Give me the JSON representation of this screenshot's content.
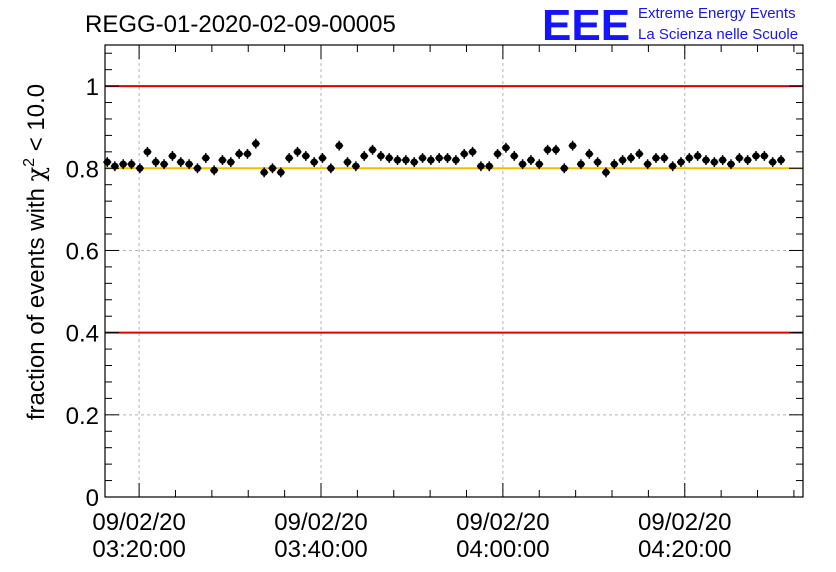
{
  "chart_data": {
    "type": "scatter",
    "title": "REGG-01-2020-02-09-00005",
    "ylabel": "fraction of events with χ² < 10.0",
    "ylabel_parts": {
      "prefix": "fraction of events with ",
      "chi": "χ",
      "sup": "2",
      "suffix": " < 10.0"
    },
    "xlabel": "",
    "x_axis": {
      "type": "time",
      "start": "09/02/20 03:16:15",
      "end": "09/02/20 04:33:00",
      "ticks": [
        {
          "value": "09/02/20 03:20:00",
          "date": "09/02/20",
          "time": "03:20:00"
        },
        {
          "value": "09/02/20 03:40:00",
          "date": "09/02/20",
          "time": "03:40:00"
        },
        {
          "value": "09/02/20 04:00:00",
          "date": "09/02/20",
          "time": "04:00:00"
        },
        {
          "value": "09/02/20 04:20:00",
          "date": "09/02/20",
          "time": "04:20:00"
        }
      ]
    },
    "ylim": [
      0,
      1.1
    ],
    "yticks": [
      {
        "value": 0,
        "label": "0"
      },
      {
        "value": 0.2,
        "label": "0.2"
      },
      {
        "value": 0.4,
        "label": "0.4"
      },
      {
        "value": 0.6,
        "label": "0.6"
      },
      {
        "value": 0.8,
        "label": "0.8"
      },
      {
        "value": 1,
        "label": "1"
      }
    ],
    "grid": true,
    "hlines": [
      {
        "y": 1.0,
        "color": "#e00000"
      },
      {
        "y": 0.4,
        "color": "#e00000"
      },
      {
        "y": 0.8,
        "color": "#f0c000"
      }
    ],
    "series": [
      {
        "marker_color": "#000000",
        "y_error": 0.012,
        "points": [
          {
            "x": "03:16:30",
            "y": 0.815
          },
          {
            "x": "03:17:20",
            "y": 0.805
          },
          {
            "x": "03:18:15",
            "y": 0.81
          },
          {
            "x": "03:19:10",
            "y": 0.81
          },
          {
            "x": "03:20:05",
            "y": 0.8
          },
          {
            "x": "03:20:55",
            "y": 0.84
          },
          {
            "x": "03:21:50",
            "y": 0.815
          },
          {
            "x": "03:22:45",
            "y": 0.81
          },
          {
            "x": "03:23:40",
            "y": 0.83
          },
          {
            "x": "03:24:35",
            "y": 0.815
          },
          {
            "x": "03:25:30",
            "y": 0.81
          },
          {
            "x": "03:26:25",
            "y": 0.8
          },
          {
            "x": "03:27:20",
            "y": 0.825
          },
          {
            "x": "03:28:15",
            "y": 0.795
          },
          {
            "x": "03:29:10",
            "y": 0.82
          },
          {
            "x": "03:30:05",
            "y": 0.815
          },
          {
            "x": "03:31:00",
            "y": 0.835
          },
          {
            "x": "03:31:55",
            "y": 0.835
          },
          {
            "x": "03:32:50",
            "y": 0.86
          },
          {
            "x": "03:33:45",
            "y": 0.79
          },
          {
            "x": "03:34:40",
            "y": 0.8
          },
          {
            "x": "03:35:35",
            "y": 0.79
          },
          {
            "x": "03:36:30",
            "y": 0.825
          },
          {
            "x": "03:37:25",
            "y": 0.84
          },
          {
            "x": "03:38:20",
            "y": 0.83
          },
          {
            "x": "03:39:15",
            "y": 0.815
          },
          {
            "x": "03:40:10",
            "y": 0.825
          },
          {
            "x": "03:41:05",
            "y": 0.8
          },
          {
            "x": "03:42:00",
            "y": 0.855
          },
          {
            "x": "03:42:55",
            "y": 0.815
          },
          {
            "x": "03:43:50",
            "y": 0.805
          },
          {
            "x": "03:44:45",
            "y": 0.83
          },
          {
            "x": "03:45:40",
            "y": 0.845
          },
          {
            "x": "03:46:35",
            "y": 0.83
          },
          {
            "x": "03:47:30",
            "y": 0.825
          },
          {
            "x": "03:48:25",
            "y": 0.82
          },
          {
            "x": "03:49:20",
            "y": 0.82
          },
          {
            "x": "03:50:15",
            "y": 0.815
          },
          {
            "x": "03:51:10",
            "y": 0.825
          },
          {
            "x": "03:52:05",
            "y": 0.82
          },
          {
            "x": "03:53:00",
            "y": 0.825
          },
          {
            "x": "03:53:55",
            "y": 0.825
          },
          {
            "x": "03:54:50",
            "y": 0.82
          },
          {
            "x": "03:55:45",
            "y": 0.835
          },
          {
            "x": "03:56:40",
            "y": 0.84
          },
          {
            "x": "03:57:35",
            "y": 0.805
          },
          {
            "x": "03:58:30",
            "y": 0.805
          },
          {
            "x": "03:59:25",
            "y": 0.835
          },
          {
            "x": "04:00:20",
            "y": 0.85
          },
          {
            "x": "04:01:15",
            "y": 0.83
          },
          {
            "x": "04:02:10",
            "y": 0.81
          },
          {
            "x": "04:03:05",
            "y": 0.82
          },
          {
            "x": "04:04:00",
            "y": 0.81
          },
          {
            "x": "04:04:55",
            "y": 0.845
          },
          {
            "x": "04:05:50",
            "y": 0.845
          },
          {
            "x": "04:06:45",
            "y": 0.8
          },
          {
            "x": "04:07:40",
            "y": 0.855
          },
          {
            "x": "04:08:35",
            "y": 0.81
          },
          {
            "x": "04:09:30",
            "y": 0.835
          },
          {
            "x": "04:10:25",
            "y": 0.815
          },
          {
            "x": "04:11:20",
            "y": 0.79
          },
          {
            "x": "04:12:15",
            "y": 0.81
          },
          {
            "x": "04:13:10",
            "y": 0.82
          },
          {
            "x": "04:14:05",
            "y": 0.825
          },
          {
            "x": "04:15:00",
            "y": 0.835
          },
          {
            "x": "04:15:55",
            "y": 0.81
          },
          {
            "x": "04:16:50",
            "y": 0.825
          },
          {
            "x": "04:17:45",
            "y": 0.825
          },
          {
            "x": "04:18:40",
            "y": 0.805
          },
          {
            "x": "04:19:35",
            "y": 0.815
          },
          {
            "x": "04:20:30",
            "y": 0.825
          },
          {
            "x": "04:21:25",
            "y": 0.83
          },
          {
            "x": "04:22:20",
            "y": 0.82
          },
          {
            "x": "04:23:15",
            "y": 0.815
          },
          {
            "x": "04:24:10",
            "y": 0.82
          },
          {
            "x": "04:25:05",
            "y": 0.81
          },
          {
            "x": "04:26:00",
            "y": 0.825
          },
          {
            "x": "04:26:55",
            "y": 0.82
          },
          {
            "x": "04:27:50",
            "y": 0.83
          },
          {
            "x": "04:28:45",
            "y": 0.83
          },
          {
            "x": "04:29:40",
            "y": 0.815
          },
          {
            "x": "04:30:35",
            "y": 0.82
          }
        ]
      }
    ]
  },
  "logo": {
    "mark": "EEE",
    "line1": "Extreme Energy Events",
    "line2": "La Scienza nelle Scuole",
    "color": "#1414ff"
  },
  "colors": {
    "grid": "#b4b4b4",
    "axis": "#000000",
    "red_line": "#e00000",
    "yellow_line": "#f0c000"
  }
}
